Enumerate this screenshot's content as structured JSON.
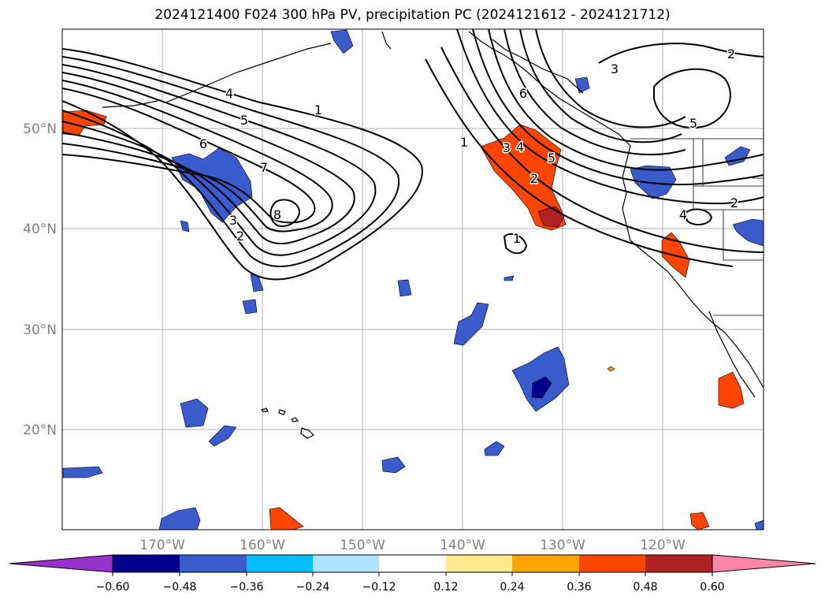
{
  "title": "2024121400 F024 300 hPa PV, precipitation PC (2024121612 - 2024121712)",
  "map": {
    "lat_labels": [
      "50°N",
      "40°N",
      "30°N",
      "20°N"
    ],
    "lon_labels": [
      "170°W",
      "160°W",
      "150°W",
      "140°W",
      "130°W",
      "120°W"
    ],
    "contour_labels": [
      "1",
      "2",
      "3",
      "4",
      "5",
      "6",
      "7",
      "8"
    ]
  },
  "colorbar": {
    "ticks": [
      "−0.60",
      "−0.48",
      "−0.36",
      "−0.24",
      "−0.12",
      "0.12",
      "0.24",
      "0.36",
      "0.48",
      "0.60"
    ],
    "colors": [
      "#9932cc",
      "#00008b",
      "#3a5bcc",
      "#00bfff",
      "#aee2ff",
      "#ffffff",
      "#ffe98f",
      "#ffa500",
      "#ff4500",
      "#b22222",
      "#ff86a8"
    ]
  }
}
